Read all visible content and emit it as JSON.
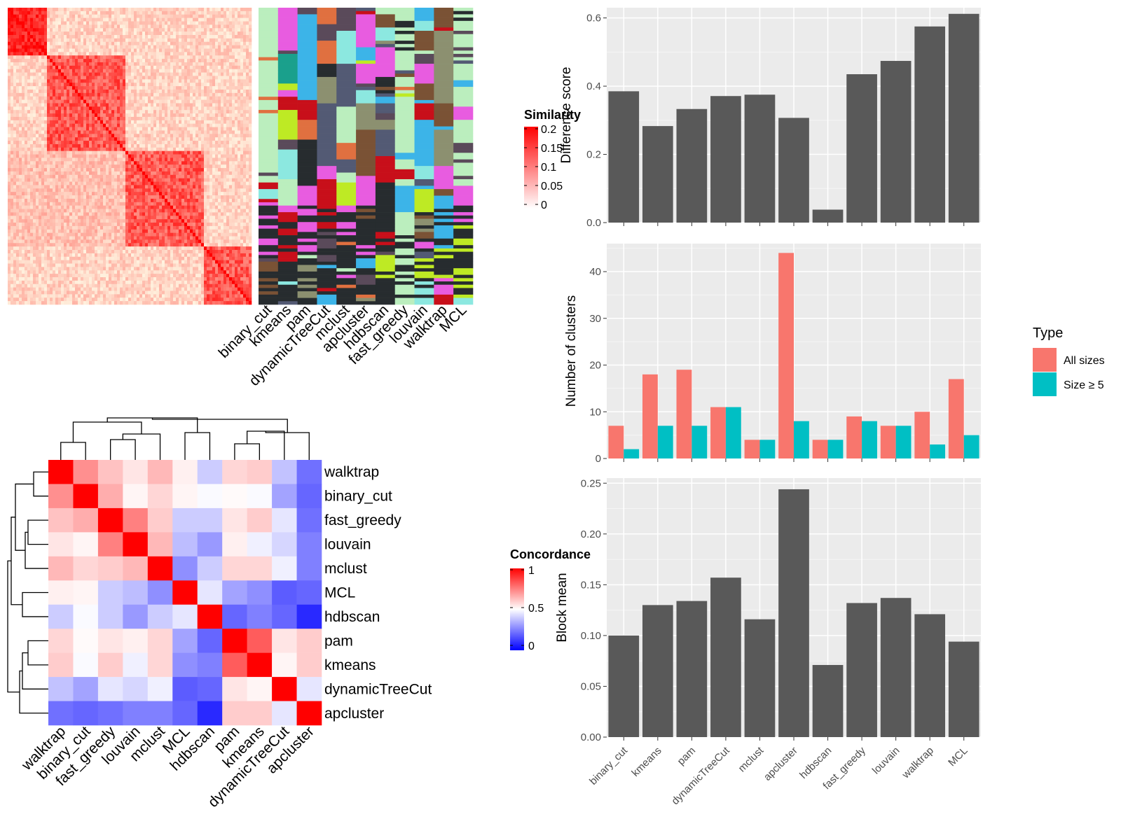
{
  "similarity_legend": {
    "title": "Similarity",
    "ticks": [
      "0.2",
      "0.15",
      "0.1",
      "0.05",
      "0"
    ]
  },
  "concordance_legend": {
    "title": "Concordance",
    "ticks": [
      "1",
      "0.5",
      "0"
    ]
  },
  "type_legend": {
    "title": "Type",
    "entries": [
      {
        "label": "All sizes",
        "color": "#F8766D"
      },
      {
        "label": "Size ≥ 5",
        "color": "#00BFC4"
      }
    ]
  },
  "chart_data": [
    {
      "type": "heatmap",
      "title": "",
      "description_key": "similarity-matrix",
      "columns": [
        "binary_cut",
        "kmeans",
        "pam",
        "dynamicTreeCut",
        "mclust",
        "apcluster",
        "hdbscan",
        "fast_greedy",
        "louvain",
        "walktrap",
        "MCL"
      ],
      "legend_range": [
        0,
        0.2
      ]
    },
    {
      "type": "heatmap",
      "title": "",
      "rows": [
        "walktrap",
        "binary_cut",
        "fast_greedy",
        "louvain",
        "mclust",
        "MCL",
        "hdbscan",
        "pam",
        "kmeans",
        "dynamicTreeCut",
        "apcluster"
      ],
      "columns": [
        "walktrap",
        "binary_cut",
        "fast_greedy",
        "louvain",
        "mclust",
        "MCL",
        "hdbscan",
        "pam",
        "kmeans",
        "dynamicTreeCut",
        "apcluster"
      ],
      "values": [
        [
          1.0,
          0.72,
          0.62,
          0.55,
          0.64,
          0.53,
          0.4,
          0.58,
          0.6,
          0.38,
          0.22
        ],
        [
          0.72,
          1.0,
          0.66,
          0.52,
          0.58,
          0.52,
          0.49,
          0.51,
          0.49,
          0.32,
          0.2
        ],
        [
          0.62,
          0.66,
          1.0,
          0.75,
          0.6,
          0.4,
          0.4,
          0.55,
          0.6,
          0.45,
          0.22
        ],
        [
          0.55,
          0.52,
          0.75,
          1.0,
          0.64,
          0.37,
          0.3,
          0.53,
          0.47,
          0.42,
          0.25
        ],
        [
          0.64,
          0.58,
          0.6,
          0.64,
          1.0,
          0.28,
          0.4,
          0.58,
          0.58,
          0.47,
          0.25
        ],
        [
          0.53,
          0.52,
          0.4,
          0.37,
          0.28,
          1.0,
          0.45,
          0.32,
          0.28,
          0.18,
          0.2
        ],
        [
          0.4,
          0.49,
          0.4,
          0.3,
          0.4,
          0.45,
          1.0,
          0.2,
          0.25,
          0.2,
          0.08
        ],
        [
          0.58,
          0.51,
          0.55,
          0.53,
          0.58,
          0.32,
          0.2,
          1.0,
          0.82,
          0.55,
          0.6
        ],
        [
          0.6,
          0.49,
          0.6,
          0.47,
          0.58,
          0.28,
          0.25,
          0.82,
          1.0,
          0.52,
          0.6
        ],
        [
          0.38,
          0.32,
          0.45,
          0.42,
          0.47,
          0.18,
          0.2,
          0.55,
          0.52,
          1.0,
          0.45
        ],
        [
          0.22,
          0.2,
          0.22,
          0.25,
          0.25,
          0.2,
          0.08,
          0.6,
          0.6,
          0.45,
          1.0
        ]
      ],
      "legend_range": [
        0,
        1
      ]
    },
    {
      "type": "bar",
      "title": "",
      "categories": [
        "binary_cut",
        "kmeans",
        "pam",
        "dynamicTreeCut",
        "mclust",
        "apcluster",
        "hdbscan",
        "fast_greedy",
        "louvain",
        "walktrap",
        "MCL"
      ],
      "values": [
        0.385,
        0.283,
        0.333,
        0.371,
        0.375,
        0.307,
        0.038,
        0.435,
        0.474,
        0.575,
        0.612
      ],
      "xlabel": "",
      "ylabel": "Difference score",
      "ylim": [
        0,
        0.63
      ],
      "yticks": [
        "0.0",
        "0.2",
        "0.4",
        "0.6"
      ],
      "grid": true
    },
    {
      "type": "bar",
      "title": "",
      "categories": [
        "binary_cut",
        "kmeans",
        "pam",
        "dynamicTreeCut",
        "mclust",
        "apcluster",
        "hdbscan",
        "fast_greedy",
        "louvain",
        "walktrap",
        "MCL"
      ],
      "series": [
        {
          "name": "All sizes",
          "values": [
            7,
            18,
            19,
            11,
            4,
            44,
            4,
            9,
            7,
            10,
            17
          ]
        },
        {
          "name": "Size ≥ 5",
          "values": [
            2,
            7,
            7,
            11,
            4,
            8,
            4,
            8,
            7,
            3,
            5
          ]
        }
      ],
      "xlabel": "",
      "ylabel": "Number of clusters",
      "ylim": [
        0,
        46
      ],
      "yticks": [
        "0",
        "10",
        "20",
        "30",
        "40"
      ],
      "legend": "right",
      "grid": true
    },
    {
      "type": "bar",
      "title": "",
      "categories": [
        "binary_cut",
        "kmeans",
        "pam",
        "dynamicTreeCut",
        "mclust",
        "apcluster",
        "hdbscan",
        "fast_greedy",
        "louvain",
        "walktrap",
        "MCL"
      ],
      "values": [
        0.1,
        0.13,
        0.134,
        0.157,
        0.116,
        0.244,
        0.071,
        0.132,
        0.137,
        0.121,
        0.094
      ],
      "xlabel": "",
      "ylabel": "Block mean",
      "ylim": [
        0,
        0.255
      ],
      "yticks": [
        "0.00",
        "0.05",
        "0.10",
        "0.15",
        "0.20",
        "0.25"
      ],
      "grid": true
    }
  ]
}
